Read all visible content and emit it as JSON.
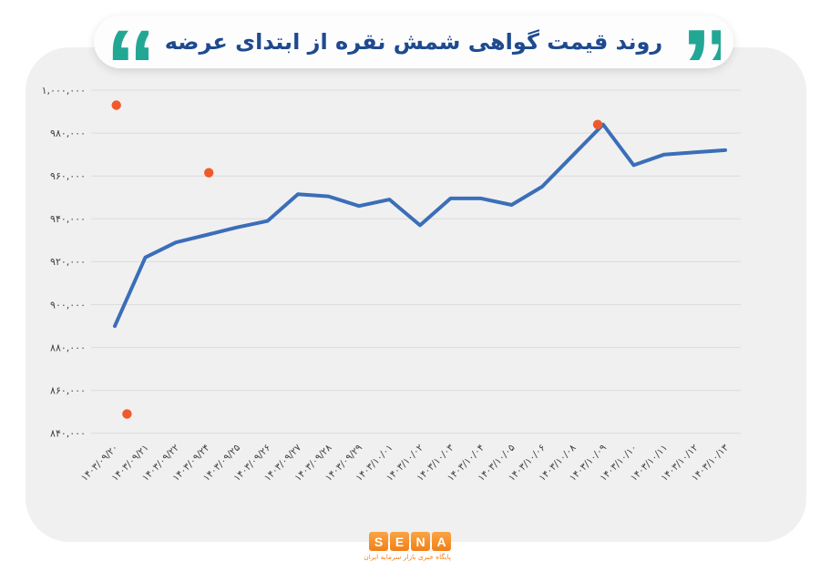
{
  "header": {
    "title": "روند قیمت گواهی شمش نقره از ابتدای عرضه"
  },
  "chart_data": {
    "type": "line",
    "title": "روند قیمت گواهی شمش نقره از ابتدای عرضه",
    "categories": [
      "۱۴۰۳/۰۹/۲۰",
      "۱۴۰۳/۰۹/۲۱",
      "۱۴۰۳/۰۹/۲۲",
      "۱۴۰۳/۰۹/۲۴",
      "۱۴۰۳/۰۹/۲۵",
      "۱۴۰۳/۰۹/۲۶",
      "۱۴۰۳/۰۹/۲۷",
      "۱۴۰۳/۰۹/۲۸",
      "۱۴۰۳/۰۹/۲۹",
      "۱۴۰۳/۱۰/۰۱",
      "۱۴۰۳/۱۰/۰۲",
      "۱۴۰۳/۱۰/۰۳",
      "۱۴۰۳/۱۰/۰۴",
      "۱۴۰۳/۱۰/۰۵",
      "۱۴۰۳/۱۰/۰۶",
      "۱۴۰۳/۱۰/۰۸",
      "۱۴۰۳/۱۰/۰۹",
      "۱۴۰۳/۱۰/۱۰",
      "۱۴۰۳/۱۰/۱۱",
      "۱۴۰۳/۱۰/۱۲",
      "۱۴۰۳/۱۰/۱۳"
    ],
    "values": [
      890000,
      922000,
      929000,
      932500,
      936000,
      939000,
      951500,
      950500,
      946000,
      949000,
      937000,
      949500,
      949500,
      946500,
      955000,
      969500,
      984000,
      965000,
      970000,
      971000,
      972000
    ],
    "line_color": "#3B6EB8",
    "outlier_markers": {
      "color": "#F05A2B",
      "points": [
        {
          "x_index": 0.05,
          "value": 993000
        },
        {
          "x_index": 0.4,
          "value": 849000
        },
        {
          "x_index": 3.08,
          "value": 961500
        },
        {
          "x_index": 15.82,
          "value": 984000
        }
      ]
    },
    "ylim": [
      840000,
      1000000
    ],
    "ytick_step": 20000,
    "ytick_labels": [
      "۱,۰۰۰,۰۰۰",
      "۹۸۰,۰۰۰",
      "۹۶۰,۰۰۰",
      "۹۴۰,۰۰۰",
      "۹۲۰,۰۰۰",
      "۹۰۰,۰۰۰",
      "۸۸۰,۰۰۰",
      "۸۶۰,۰۰۰",
      "۸۴۰,۰۰۰"
    ],
    "xlabel": "",
    "ylabel": "",
    "grid": true,
    "legend": "none"
  },
  "footer": {
    "logo_letters": [
      "S",
      "E",
      "N",
      "A"
    ],
    "logo_subtitle": "پایگاه خبری بازار سرمایه ایران"
  },
  "colors": {
    "accent_teal": "#23A795",
    "title_blue": "#1E4A8F",
    "line_blue": "#3B6EB8",
    "marker_orange": "#F05A2B",
    "logo_orange": "#F28118",
    "panel_bg": "#F0F0F1",
    "grid": "#DBDBDD",
    "axis_text": "#414141"
  }
}
